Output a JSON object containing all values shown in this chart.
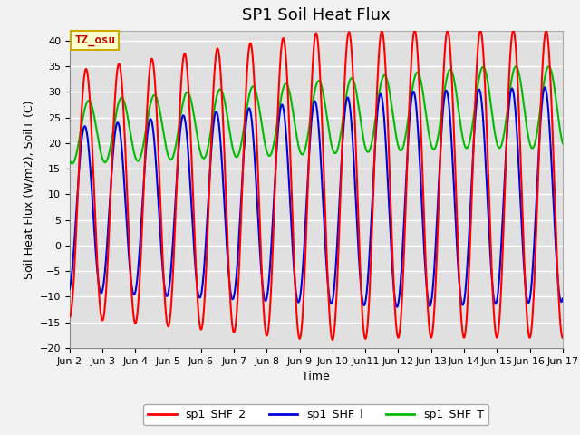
{
  "title": "SP1 Soil Heat Flux",
  "xlabel": "Time",
  "ylabel": "Soil Heat Flux (W/m2), SoilT (C)",
  "xlim_start_day": 2,
  "xlim_end_day": 17,
  "ylim": [
    -20,
    42
  ],
  "yticks": [
    -20,
    -15,
    -10,
    -5,
    0,
    5,
    10,
    15,
    20,
    25,
    30,
    35,
    40
  ],
  "xtick_labels": [
    "Jun 2",
    "Jun 3",
    "Jun 4",
    "Jun 5",
    "Jun 6",
    "Jun 7",
    "Jun 8",
    "Jun 9",
    "Jun 10",
    "Jun10",
    "Jun11",
    "Jun 12",
    "Jun 13",
    "Jun 14",
    "Jun 15",
    "Jun 16"
  ],
  "background_color": "#e0e0e0",
  "grid_color": "#ffffff",
  "fig_facecolor": "#f2f2f2",
  "line_shf2_color": "#ff0000",
  "line_shf1_color": "#0000dd",
  "line_shft_color": "#00bb00",
  "line_width": 1.5,
  "legend_labels": [
    "sp1_SHF_2",
    "sp1_SHF_l",
    "sp1_SHF_T"
  ],
  "annotation_text": "TZ_osu",
  "annotation_bbox_facecolor": "#ffffcc",
  "annotation_bbox_edgecolor": "#ccaa00",
  "title_fontsize": 13,
  "axis_fontsize": 9,
  "tick_fontsize": 8,
  "legend_fontsize": 9
}
